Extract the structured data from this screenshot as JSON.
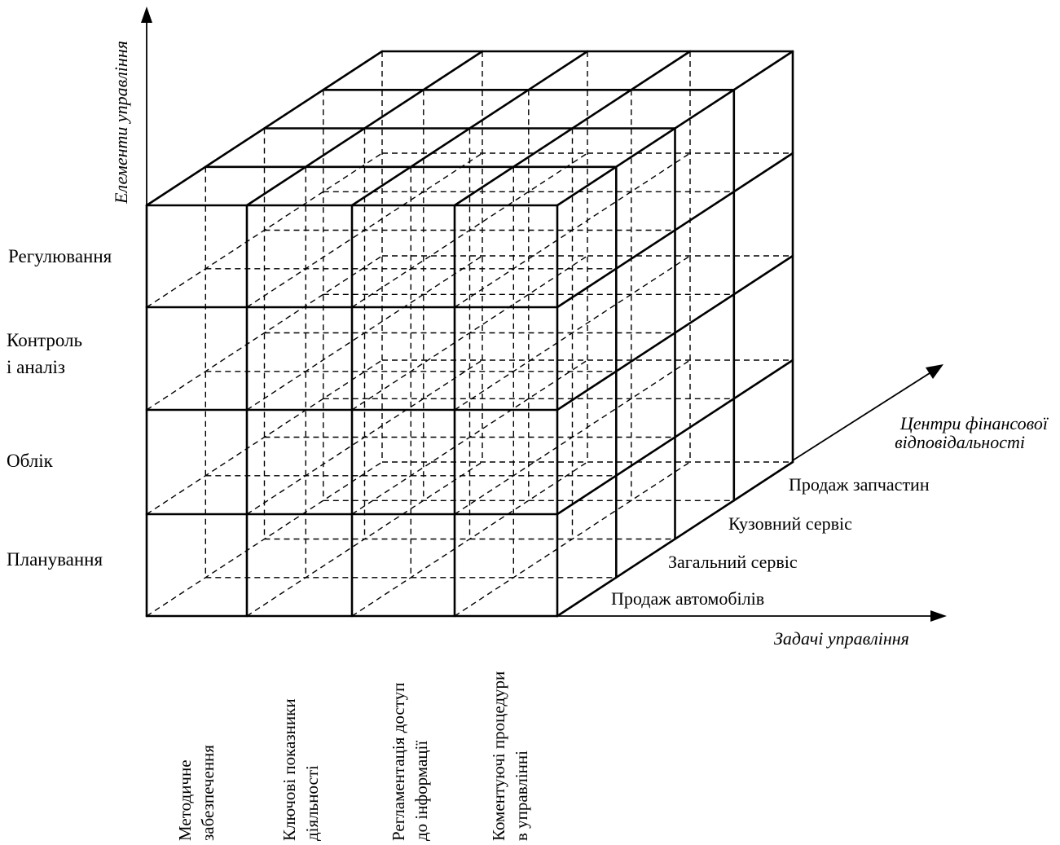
{
  "diagram": {
    "axes": {
      "vertical_title": "Елементи управління",
      "depth_title_line1": "Центри фінансової",
      "depth_title_line2": "відповідальності",
      "horizontal_title": "Задачі управління"
    },
    "management_elements": [
      {
        "line1": "Регулювання",
        "line2": ""
      },
      {
        "line1": "Контроль",
        "line2": "і аналіз"
      },
      {
        "line1": "Облік",
        "line2": ""
      },
      {
        "line1": "Планування",
        "line2": ""
      }
    ],
    "responsibility_centers": [
      "Продаж автомобілів",
      "Загальний сервіс",
      "Кузовний сервіс",
      "Продаж запчастин"
    ],
    "management_tasks": [
      {
        "line1": "Методичне",
        "line2": "забезпечення"
      },
      {
        "line1": "Ключові показники",
        "line2": "діяльності"
      },
      {
        "line1": "Регламентація доступ",
        "line2": "до інформації"
      },
      {
        "line1": "Коментуючі процедури",
        "line2": "в управлінні"
      }
    ]
  }
}
